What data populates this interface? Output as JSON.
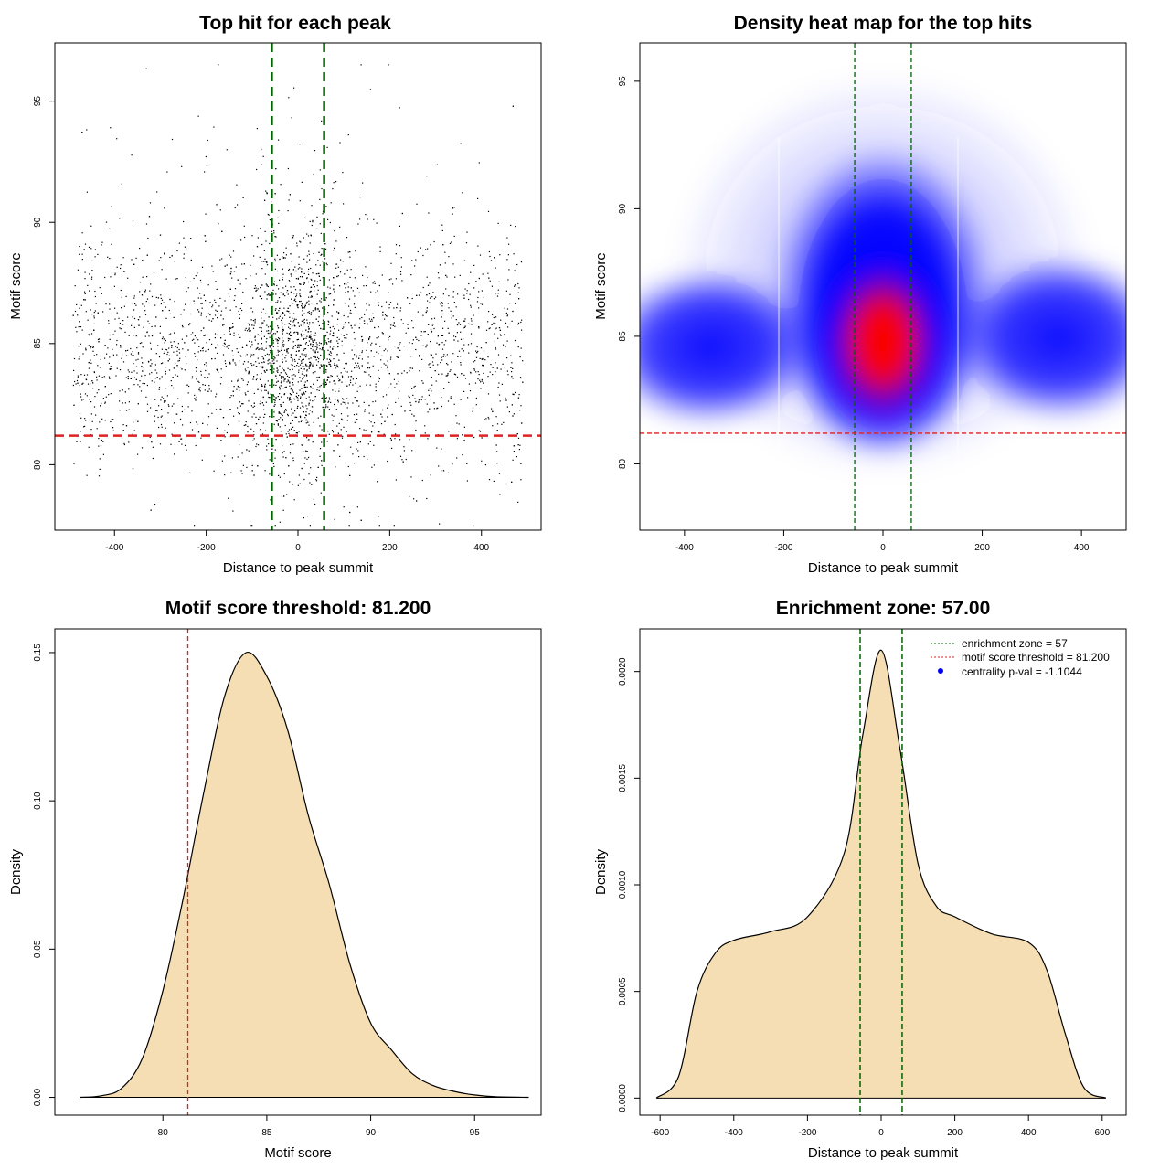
{
  "chart_data": [
    {
      "type": "scatter",
      "title": "Top hit for each peak",
      "xlabel": "Distance to peak summit",
      "ylabel": "Motif score",
      "xlim": [
        -530,
        530
      ],
      "ylim": [
        77.3,
        97.4
      ],
      "xticks": [
        -400,
        -200,
        0,
        200,
        400
      ],
      "yticks": [
        80,
        85,
        90,
        95
      ],
      "vlines": [
        -57,
        57
      ],
      "hline": 81.2,
      "colors": {
        "points": "#000000",
        "zone": "#006400",
        "threshold": "#dd2222"
      }
    },
    {
      "type": "heatmap",
      "title": "Density heat map for the top hits",
      "xlabel": "Distance to peak summit",
      "ylabel": "Motif score",
      "xlim": [
        -490,
        490
      ],
      "ylim": [
        77.4,
        96.5
      ],
      "xticks": [
        -400,
        -200,
        0,
        200,
        400
      ],
      "yticks": [
        80,
        85,
        90,
        95
      ],
      "vlines": [
        -57,
        57
      ],
      "hline": 81.2,
      "colors": {
        "low": "#ffffff",
        "mid": "#0000ff",
        "high": "#ff0000"
      }
    },
    {
      "type": "area",
      "title": "Motif score threshold: 81.200",
      "xlabel": "Motif score",
      "ylabel": "Density",
      "xlim": [
        74.8,
        98.2
      ],
      "ylim": [
        -0.006,
        0.158
      ],
      "xticks": [
        80,
        85,
        90,
        95
      ],
      "yticks": [
        0.0,
        0.05,
        0.1,
        0.15
      ],
      "yticklabels": [
        "0.00",
        "0.05",
        "0.10",
        "0.15"
      ],
      "vline": 81.2,
      "x": [
        76,
        77,
        78,
        79,
        80,
        81,
        82,
        83,
        84,
        85,
        86,
        87,
        88,
        89,
        90,
        91,
        92,
        93,
        94,
        95,
        96,
        97.6
      ],
      "y": [
        0.0,
        0.0005,
        0.003,
        0.013,
        0.036,
        0.068,
        0.104,
        0.136,
        0.15,
        0.142,
        0.124,
        0.095,
        0.072,
        0.045,
        0.025,
        0.016,
        0.008,
        0.004,
        0.002,
        0.0008,
        0.0002,
        0.0
      ],
      "colors": {
        "fill": "#f5deb3",
        "line": "#000000",
        "threshold": "#dd2222"
      }
    },
    {
      "type": "area",
      "title": "Enrichment zone: 57.00",
      "xlabel": "Distance to peak summit",
      "ylabel": "Density",
      "xlim": [
        -655,
        665
      ],
      "ylim": [
        -8e-05,
        0.0022
      ],
      "xticks": [
        -600,
        -400,
        -200,
        0,
        200,
        400,
        600
      ],
      "yticks": [
        0.0,
        0.0005,
        0.001,
        0.0015,
        0.002
      ],
      "yticklabels": [
        "0.0000",
        "0.0005",
        "0.0010",
        "0.0015",
        "0.0020"
      ],
      "vlines": [
        -57,
        57
      ],
      "x": [
        -610,
        -550,
        -500,
        -450,
        -400,
        -300,
        -200,
        -100,
        -50,
        0,
        50,
        100,
        150,
        200,
        300,
        400,
        450,
        500,
        550,
        610
      ],
      "y": [
        0.0,
        0.0001,
        0.0005,
        0.00068,
        0.00074,
        0.00078,
        0.00085,
        0.00115,
        0.0017,
        0.0021,
        0.00165,
        0.0011,
        0.0009,
        0.00085,
        0.00077,
        0.00073,
        0.0006,
        0.0003,
        5e-05,
        0.0
      ],
      "legend": [
        "enrichment zone = 57",
        "motif score threshold = 81.200",
        "centrality p-val = -1.1044"
      ],
      "legend_position": "top-right",
      "colors": {
        "fill": "#f5deb3",
        "line": "#000000",
        "zone": "#006400",
        "threshold": "#dd2222",
        "pval": "#0000ff"
      }
    }
  ]
}
